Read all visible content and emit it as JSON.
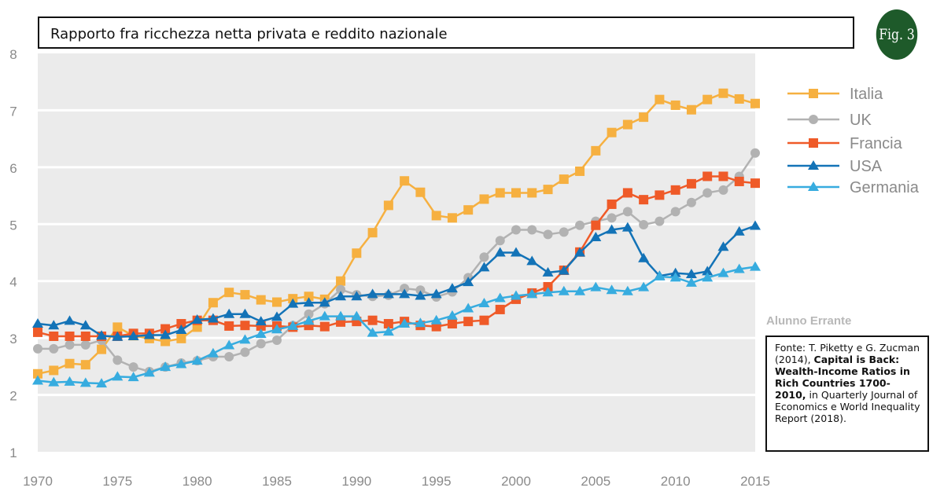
{
  "title": "Rapporto fra ricchezza netta privata e reddito nazionale",
  "badge": "Fig. 3",
  "watermark": "Alunno Errante",
  "source": {
    "prefix": "Fonte: T. Piketty e G. Zucman (2014), ",
    "bold": "Capital is Back: Wealth-Income Ratios in Rich Countries 1700-2010,",
    "suffix": " in Quarterly Journal of Economics e World Inequality Report (2018)."
  },
  "chart_data": {
    "type": "line",
    "title": "Rapporto fra ricchezza netta privata e reddito nazionale",
    "xlabel": "",
    "ylabel": "",
    "xlim": [
      1970,
      2015
    ],
    "ylim": [
      1,
      8
    ],
    "x_ticks": [
      1970,
      1975,
      1980,
      1985,
      1990,
      1995,
      2000,
      2005,
      2010,
      2015
    ],
    "y_ticks": [
      1,
      2,
      3,
      4,
      5,
      6,
      7,
      8
    ],
    "grid": "horizontal",
    "legend_position": "top-right",
    "x": [
      1970,
      1971,
      1972,
      1973,
      1974,
      1975,
      1976,
      1977,
      1978,
      1979,
      1980,
      1981,
      1982,
      1983,
      1984,
      1985,
      1986,
      1987,
      1988,
      1989,
      1990,
      1991,
      1992,
      1993,
      1994,
      1995,
      1996,
      1997,
      1998,
      1999,
      2000,
      2001,
      2002,
      2003,
      2004,
      2005,
      2006,
      2007,
      2008,
      2009,
      2010,
      2011,
      2012,
      2013,
      2014,
      2015
    ],
    "series": [
      {
        "name": "Italia",
        "color": "#f6b040",
        "marker": "square",
        "values": [
          2.37,
          2.43,
          2.55,
          2.53,
          2.8,
          3.19,
          3.04,
          2.99,
          2.94,
          2.99,
          3.19,
          3.62,
          3.8,
          3.76,
          3.67,
          3.63,
          3.69,
          3.73,
          3.68,
          4.0,
          4.49,
          4.85,
          5.33,
          5.76,
          5.56,
          5.15,
          5.11,
          5.25,
          5.44,
          5.55,
          5.55,
          5.55,
          5.61,
          5.79,
          5.93,
          6.29,
          6.61,
          6.75,
          6.88,
          7.19,
          7.09,
          7.01,
          7.19,
          7.3,
          7.2,
          7.12
        ]
      },
      {
        "name": "UK",
        "color": "#b2b2b2",
        "marker": "circle",
        "values": [
          2.81,
          2.81,
          2.88,
          2.88,
          2.96,
          2.61,
          2.49,
          2.41,
          2.49,
          2.56,
          2.6,
          2.67,
          2.67,
          2.75,
          2.9,
          2.96,
          3.22,
          3.42,
          3.6,
          3.85,
          3.76,
          3.73,
          3.75,
          3.87,
          3.84,
          3.72,
          3.81,
          4.06,
          4.42,
          4.71,
          4.9,
          4.9,
          4.82,
          4.86,
          4.98,
          5.05,
          5.11,
          5.22,
          4.99,
          5.05,
          5.22,
          5.38,
          5.55,
          5.6,
          5.84,
          6.25
        ]
      },
      {
        "name": "Francia",
        "color": "#ef5a28",
        "marker": "square",
        "values": [
          3.1,
          3.03,
          3.03,
          3.03,
          3.03,
          3.03,
          3.08,
          3.08,
          3.16,
          3.25,
          3.31,
          3.31,
          3.21,
          3.22,
          3.21,
          3.21,
          3.19,
          3.22,
          3.2,
          3.28,
          3.29,
          3.31,
          3.25,
          3.29,
          3.22,
          3.2,
          3.25,
          3.29,
          3.31,
          3.5,
          3.68,
          3.79,
          3.9,
          4.19,
          4.51,
          4.98,
          5.35,
          5.55,
          5.43,
          5.51,
          5.6,
          5.71,
          5.84,
          5.84,
          5.75,
          5.72
        ]
      },
      {
        "name": "USA",
        "color": "#1373b7",
        "marker": "triangle",
        "values": [
          3.25,
          3.22,
          3.3,
          3.22,
          3.04,
          3.02,
          3.03,
          3.05,
          3.05,
          3.14,
          3.32,
          3.34,
          3.42,
          3.42,
          3.29,
          3.37,
          3.6,
          3.62,
          3.62,
          3.73,
          3.73,
          3.77,
          3.77,
          3.77,
          3.74,
          3.77,
          3.87,
          3.98,
          4.24,
          4.5,
          4.5,
          4.35,
          4.15,
          4.18,
          4.5,
          4.77,
          4.9,
          4.94,
          4.4,
          4.09,
          4.14,
          4.12,
          4.17,
          4.6,
          4.87,
          4.97
        ]
      },
      {
        "name": "Germania",
        "color": "#37acdf",
        "marker": "triangle",
        "values": [
          2.25,
          2.22,
          2.23,
          2.21,
          2.2,
          2.32,
          2.31,
          2.39,
          2.49,
          2.54,
          2.6,
          2.73,
          2.87,
          2.97,
          3.07,
          3.15,
          3.21,
          3.3,
          3.38,
          3.38,
          3.38,
          3.09,
          3.11,
          3.25,
          3.26,
          3.31,
          3.39,
          3.52,
          3.61,
          3.7,
          3.74,
          3.77,
          3.8,
          3.82,
          3.82,
          3.89,
          3.84,
          3.82,
          3.89,
          4.08,
          4.06,
          3.97,
          4.06,
          4.14,
          4.21,
          4.25
        ]
      }
    ]
  }
}
